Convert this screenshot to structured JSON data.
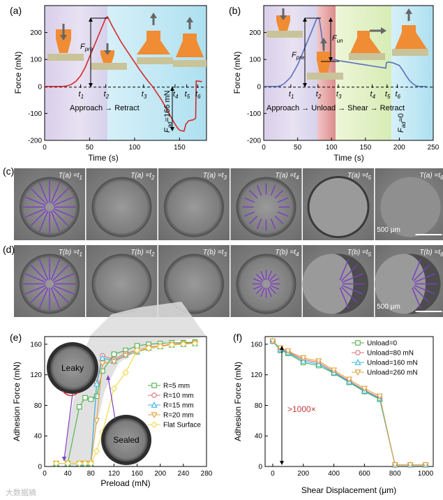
{
  "panel_a": {
    "label": "(a)",
    "xlabel": "Time (s)",
    "ylabel": "Force (mN)",
    "xticks": [
      "0",
      "50",
      "100",
      "150"
    ],
    "yticks": [
      "-200",
      "-100",
      "0",
      "100",
      "200"
    ],
    "markers": [
      "t1",
      "t2",
      "t3",
      "t4",
      "t5",
      "t6"
    ],
    "phase_text": "Approach → Retract",
    "fpre": "F",
    "fpre_sub": "pre",
    "fad_text": "F",
    "fad_sub": "ad",
    "fad_value": "=166 mN"
  },
  "panel_b": {
    "label": "(b)",
    "xlabel": "Time (s)",
    "ylabel": "Force (mN)",
    "xticks": [
      "0",
      "50",
      "100",
      "150",
      "200",
      "250"
    ],
    "yticks": [
      "-200",
      "-100",
      "0",
      "100",
      "200"
    ],
    "markers": [
      "t1",
      "t2",
      "t3",
      "t4",
      "t5",
      "t6"
    ],
    "phase_text": "Approach → Unload → Shear → Retract",
    "fpre": "F",
    "fpre_sub": "pre",
    "fun": "F",
    "fun_sub": "un",
    "fad_text": "F",
    "fad_sub": "ad",
    "fad_value": "≈0"
  },
  "panel_c": {
    "label": "(c)",
    "frames": [
      "T(a) =t1",
      "T(a) =t2",
      "T(a) =t3",
      "T(a) =t4",
      "T(a) =t5",
      "T(a) =t6"
    ],
    "scale": "500 μm"
  },
  "panel_d": {
    "label": "(d)",
    "frames": [
      "T(b) =t1",
      "T(b) =t2",
      "T(b) =t3",
      "T(b) =t4",
      "T(b) =t5",
      "T(b) =t6"
    ],
    "scale": "500 μm"
  },
  "panel_e": {
    "label": "(e)",
    "xlabel": "Preload (mN)",
    "ylabel": "Adhesion Force (mN)",
    "inset_leaky": "Leaky",
    "inset_sealed": "Sealed"
  },
  "panel_f": {
    "label": "(f)",
    "xlabel": "Shear Displacement (μm)",
    "ylabel": "Adhesion Force (mN)",
    "ratio": ">1000×"
  },
  "watermark": "大数据摘",
  "colors": {
    "red": "#d62728",
    "blue": "#5b6fbf",
    "green": "#4daf4a",
    "pink": "#d6707a",
    "cyan": "#35b6e0",
    "orange": "#e0a13a",
    "yellow": "#f2d648",
    "purple": "#7b3fbf"
  },
  "chart_data": [
    {
      "id": "a",
      "type": "line",
      "title": "",
      "xlabel": "Time (s)",
      "ylabel": "Force (mN)",
      "xlim": [
        0,
        180
      ],
      "ylim": [
        -200,
        300
      ],
      "series": [
        {
          "name": "force",
          "x": [
            0,
            20,
            25,
            30,
            35,
            40,
            45,
            50,
            55,
            60,
            65,
            68,
            70,
            75,
            80,
            85,
            90,
            95,
            100,
            105,
            110,
            115,
            120,
            125,
            130,
            135,
            140,
            145,
            148,
            150,
            152,
            155,
            157,
            160,
            162,
            165,
            167,
            168,
            168.5,
            170,
            175
          ],
          "y": [
            0,
            0,
            2,
            8,
            20,
            40,
            70,
            110,
            150,
            190,
            230,
            255,
            258,
            225,
            195,
            165,
            140,
            115,
            90,
            65,
            42,
            20,
            0,
            -25,
            -50,
            -80,
            -110,
            -140,
            -155,
            -162,
            -164,
            -166,
            -140,
            -128,
            -126,
            -124,
            -120,
            -118,
            20,
            20,
            18
          ]
        }
      ],
      "event_times": {
        "t1": 40,
        "t2": 68,
        "t3": 110,
        "t4": 145,
        "t5": 158,
        "t6": 170
      }
    },
    {
      "id": "b",
      "type": "line",
      "xlabel": "Time (s)",
      "ylabel": "Force (mN)",
      "xlim": [
        0,
        250
      ],
      "ylim": [
        -200,
        300
      ],
      "series": [
        {
          "name": "force",
          "x": [
            0,
            20,
            25,
            30,
            40,
            50,
            60,
            70,
            78,
            80,
            82,
            85,
            88,
            90,
            95,
            100,
            103,
            105,
            110,
            120,
            130,
            140,
            150,
            160,
            170,
            180,
            181,
            183,
            185,
            190,
            200,
            205,
            210,
            215,
            220,
            225,
            230,
            240
          ],
          "y": [
            0,
            0,
            3,
            10,
            35,
            80,
            140,
            200,
            250,
            255,
            250,
            200,
            140,
            110,
            102,
            100,
            98,
            100,
            96,
            92,
            88,
            84,
            80,
            76,
            72,
            68,
            88,
            90,
            90,
            88,
            78,
            60,
            40,
            22,
            10,
            2,
            0,
            0
          ]
        }
      ],
      "event_times": {
        "t1": 40,
        "t2": 80,
        "t3": 110,
        "t4": 160,
        "t5": 182,
        "t6": 197
      }
    },
    {
      "id": "e",
      "type": "line",
      "xlabel": "Preload (mN)",
      "ylabel": "Adhesion Force (mN)",
      "xlim": [
        0,
        280
      ],
      "ylim": [
        0,
        170
      ],
      "series": [
        {
          "name": "R=5 mm",
          "x": [
            20,
            40,
            60,
            70,
            80,
            90,
            100,
            120,
            140,
            160,
            180,
            200,
            220,
            240,
            260
          ],
          "y": [
            4,
            4,
            78,
            90,
            88,
            92,
            125,
            147,
            152,
            158,
            160,
            161,
            162,
            162,
            163
          ]
        },
        {
          "name": "R=10 mm",
          "x": [
            20,
            40,
            60,
            70,
            80,
            90,
            100,
            120,
            140,
            160,
            180,
            200,
            220,
            240,
            260
          ],
          "y": [
            4,
            4,
            4,
            4,
            4,
            110,
            145,
            140,
            148,
            152,
            156,
            158,
            160,
            161,
            162
          ]
        },
        {
          "name": "R=15 mm",
          "x": [
            20,
            40,
            60,
            70,
            80,
            90,
            100,
            120,
            140,
            160,
            180,
            200,
            220,
            240,
            260
          ],
          "y": [
            4,
            4,
            4,
            4,
            4,
            108,
            142,
            138,
            146,
            150,
            155,
            157,
            159,
            160,
            161
          ]
        },
        {
          "name": "R=20 mm",
          "x": [
            20,
            40,
            60,
            70,
            80,
            90,
            100,
            120,
            140,
            160,
            180,
            200,
            220,
            240,
            260
          ],
          "y": [
            4,
            4,
            4,
            4,
            4,
            60,
            135,
            137,
            145,
            150,
            154,
            157,
            159,
            160,
            161
          ]
        },
        {
          "name": "Flat Surface",
          "x": [
            20,
            40,
            60,
            70,
            80,
            90,
            100,
            120,
            140,
            160,
            180,
            200,
            220,
            240,
            260
          ],
          "y": [
            4,
            4,
            4,
            4,
            4,
            20,
            45,
            102,
            123,
            152,
            155,
            157,
            159,
            160,
            161
          ]
        }
      ]
    },
    {
      "id": "f",
      "type": "line",
      "xlabel": "Shear Displacement (μm)",
      "ylabel": "Adhesion Force (mN)",
      "xlim": [
        -50,
        1050
      ],
      "ylim": [
        0,
        170
      ],
      "series": [
        {
          "name": "Unload=0",
          "x": [
            0,
            50,
            100,
            200,
            300,
            400,
            500,
            600,
            700,
            800,
            900,
            1000
          ],
          "y": [
            164,
            152,
            148,
            136,
            132,
            122,
            110,
            98,
            88,
            2,
            2,
            2
          ]
        },
        {
          "name": "Unload=80 mN",
          "x": [
            0,
            50,
            100,
            200,
            300,
            400,
            500,
            600,
            700,
            800,
            900,
            1000
          ],
          "y": [
            164,
            154,
            150,
            140,
            136,
            124,
            112,
            100,
            90,
            2,
            2,
            2
          ]
        },
        {
          "name": "Unload=160 mN",
          "x": [
            0,
            50,
            100,
            200,
            300,
            400,
            500,
            600,
            700,
            800,
            900,
            1000
          ],
          "y": [
            164,
            153,
            149,
            138,
            134,
            123,
            111,
            99,
            89,
            2,
            2,
            2
          ]
        },
        {
          "name": "Unload=260 mN",
          "x": [
            0,
            50,
            100,
            200,
            300,
            400,
            500,
            600,
            700,
            800,
            900,
            1000
          ],
          "y": [
            164,
            155,
            151,
            142,
            138,
            126,
            114,
            102,
            92,
            2,
            2,
            2
          ]
        }
      ]
    }
  ]
}
